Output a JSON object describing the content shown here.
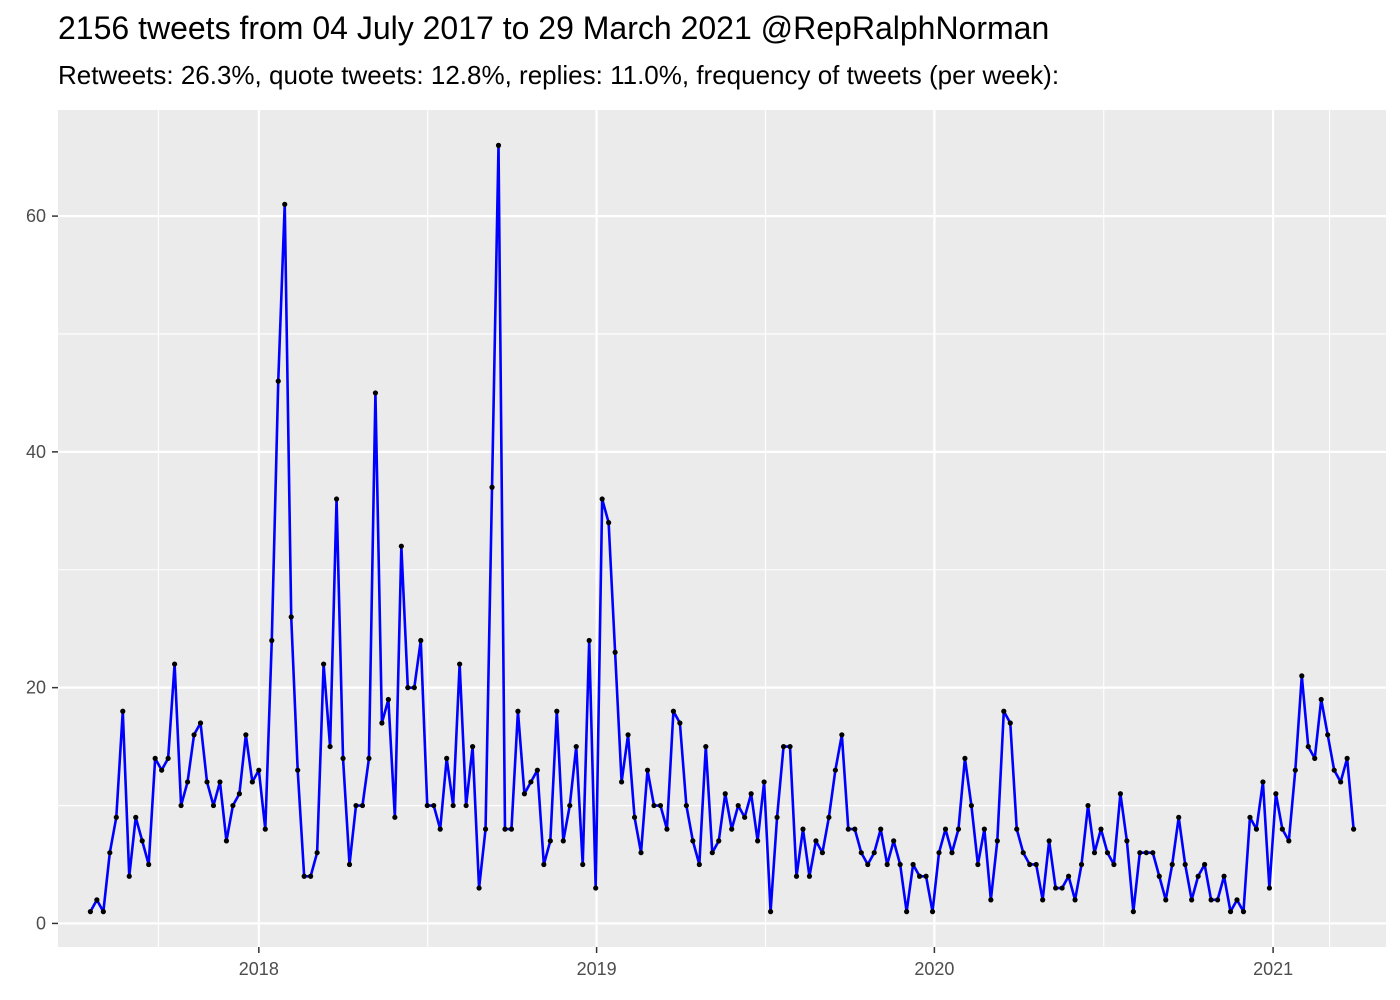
{
  "chart_data": {
    "type": "line",
    "title": "2156 tweets from 04 July 2017 to 29 March 2021 @RepRalphNorman",
    "subtitle": "Retweets: 26.3%, quote tweets: 12.8%, replies: 11.0%, frequency of tweets (per week):",
    "xlabel": "",
    "ylabel": "",
    "x_ticks": [
      "2018",
      "2019",
      "2020",
      "2021"
    ],
    "y_ticks": [
      0,
      20,
      40,
      60
    ],
    "ylim": [
      -2,
      69
    ],
    "xlim": [
      "2017-05-29",
      "2021-05-03"
    ],
    "grid": true,
    "background": "#ebebeb",
    "line_color": "#0000ff",
    "point_color": "#000000",
    "x": [
      "2017-07-03",
      "2017-07-10",
      "2017-07-17",
      "2017-07-24",
      "2017-07-31",
      "2017-08-07",
      "2017-08-14",
      "2017-08-21",
      "2017-08-28",
      "2017-09-04",
      "2017-09-11",
      "2017-09-18",
      "2017-09-25",
      "2017-10-02",
      "2017-10-09",
      "2017-10-16",
      "2017-10-23",
      "2017-10-30",
      "2017-11-06",
      "2017-11-13",
      "2017-11-20",
      "2017-11-27",
      "2017-12-04",
      "2017-12-11",
      "2017-12-18",
      "2017-12-25",
      "2018-01-01",
      "2018-01-08",
      "2018-01-15",
      "2018-01-22",
      "2018-01-29",
      "2018-02-05",
      "2018-02-12",
      "2018-02-19",
      "2018-02-26",
      "2018-03-05",
      "2018-03-12",
      "2018-03-19",
      "2018-03-26",
      "2018-04-02",
      "2018-04-09",
      "2018-04-16",
      "2018-04-23",
      "2018-04-30",
      "2018-05-07",
      "2018-05-14",
      "2018-05-21",
      "2018-05-28",
      "2018-06-04",
      "2018-06-11",
      "2018-06-18",
      "2018-06-25",
      "2018-07-02",
      "2018-07-09",
      "2018-07-16",
      "2018-07-23",
      "2018-07-30",
      "2018-08-06",
      "2018-08-13",
      "2018-08-20",
      "2018-08-27",
      "2018-09-03",
      "2018-09-10",
      "2018-09-17",
      "2018-09-24",
      "2018-10-01",
      "2018-10-08",
      "2018-10-15",
      "2018-10-22",
      "2018-10-29",
      "2018-11-05",
      "2018-11-12",
      "2018-11-19",
      "2018-11-26",
      "2018-12-03",
      "2018-12-10",
      "2018-12-17",
      "2018-12-24",
      "2018-12-31",
      "2019-01-07",
      "2019-01-14",
      "2019-01-21",
      "2019-01-28",
      "2019-02-04",
      "2019-02-11",
      "2019-02-18",
      "2019-02-25",
      "2019-03-04",
      "2019-03-11",
      "2019-03-18",
      "2019-03-25",
      "2019-04-01",
      "2019-04-08",
      "2019-04-15",
      "2019-04-22",
      "2019-04-29",
      "2019-05-06",
      "2019-05-13",
      "2019-05-20",
      "2019-05-27",
      "2019-06-03",
      "2019-06-10",
      "2019-06-17",
      "2019-06-24",
      "2019-07-01",
      "2019-07-08",
      "2019-07-15",
      "2019-07-22",
      "2019-07-29",
      "2019-08-05",
      "2019-08-12",
      "2019-08-19",
      "2019-08-26",
      "2019-09-02",
      "2019-09-09",
      "2019-09-16",
      "2019-09-23",
      "2019-09-30",
      "2019-10-07",
      "2019-10-14",
      "2019-10-21",
      "2019-10-28",
      "2019-11-04",
      "2019-11-11",
      "2019-11-18",
      "2019-11-25",
      "2019-12-02",
      "2019-12-09",
      "2019-12-16",
      "2019-12-23",
      "2019-12-30",
      "2020-01-06",
      "2020-01-13",
      "2020-01-20",
      "2020-01-27",
      "2020-02-03",
      "2020-02-10",
      "2020-02-17",
      "2020-02-24",
      "2020-03-02",
      "2020-03-09",
      "2020-03-16",
      "2020-03-23",
      "2020-03-30",
      "2020-04-06",
      "2020-04-13",
      "2020-04-20",
      "2020-04-27",
      "2020-05-04",
      "2020-05-11",
      "2020-05-18",
      "2020-05-25",
      "2020-06-01",
      "2020-06-08",
      "2020-06-15",
      "2020-06-22",
      "2020-06-29",
      "2020-07-06",
      "2020-07-13",
      "2020-07-20",
      "2020-07-27",
      "2020-08-03",
      "2020-08-10",
      "2020-08-17",
      "2020-08-24",
      "2020-08-31",
      "2020-09-07",
      "2020-09-14",
      "2020-09-21",
      "2020-09-28",
      "2020-10-05",
      "2020-10-12",
      "2020-10-19",
      "2020-10-26",
      "2020-11-02",
      "2020-11-09",
      "2020-11-16",
      "2020-11-23",
      "2020-11-30",
      "2020-12-07",
      "2020-12-14",
      "2020-12-21",
      "2020-12-28",
      "2021-01-04",
      "2021-01-11",
      "2021-01-18",
      "2021-01-25",
      "2021-02-01",
      "2021-02-08",
      "2021-02-15",
      "2021-02-22",
      "2021-03-01",
      "2021-03-08",
      "2021-03-15",
      "2021-03-22",
      "2021-03-29"
    ],
    "series": [
      {
        "values": [
          1,
          2,
          1,
          6,
          9,
          18,
          4,
          9,
          7,
          5,
          14,
          13,
          14,
          22,
          10,
          12,
          16,
          17,
          12,
          10,
          12,
          7,
          10,
          11,
          16,
          12,
          13,
          8,
          24,
          46,
          61,
          26,
          13,
          4,
          4,
          6,
          22,
          15,
          36,
          14,
          5,
          10,
          10,
          14,
          45,
          17,
          19,
          9,
          32,
          20,
          20,
          24,
          10,
          10,
          8,
          14,
          10,
          22,
          10,
          15,
          3,
          8,
          37,
          66,
          8,
          8,
          18,
          11,
          12,
          13,
          5,
          7,
          18,
          7,
          10,
          15,
          5,
          24,
          3,
          36,
          34,
          23,
          12,
          16,
          9,
          6,
          13,
          10,
          10,
          8,
          18,
          17,
          10,
          7,
          5,
          15,
          6,
          7,
          11,
          8,
          10,
          9,
          11,
          7,
          12,
          1,
          9,
          15,
          15,
          4,
          8,
          4,
          7,
          6,
          9,
          13,
          16,
          8,
          8,
          6,
          5,
          6,
          8,
          5,
          7,
          5,
          1,
          5,
          4,
          4,
          1,
          6,
          8,
          6,
          8,
          14,
          10,
          5,
          8,
          2,
          7,
          18,
          17,
          8,
          6,
          5,
          5,
          2,
          7,
          3,
          3,
          4,
          2,
          5,
          10,
          6,
          8,
          6,
          5,
          11,
          7,
          1,
          6,
          6,
          6,
          4,
          2,
          5,
          9,
          5,
          2,
          4,
          5,
          2,
          2,
          4,
          1,
          2,
          1,
          9,
          8,
          12,
          3,
          11,
          8,
          7,
          13,
          21,
          15,
          14,
          19,
          16,
          13,
          12,
          14,
          8
        ]
      }
    ]
  }
}
